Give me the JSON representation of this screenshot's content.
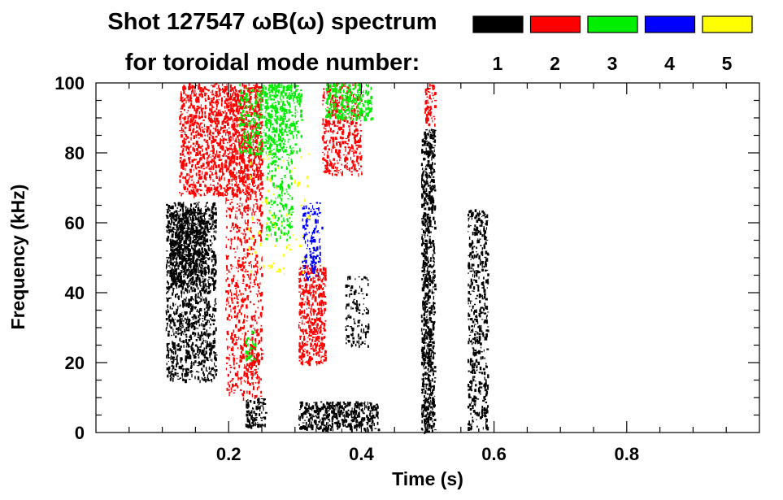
{
  "chart_data": {
    "type": "heatmap",
    "title_line1": "Shot 127547 ωB(ω) spectrum",
    "title_line2": "for toroidal mode number:",
    "xlabel": "Time (s)",
    "ylabel": "Frequency (kHz)",
    "xlim": [
      0.0,
      1.0
    ],
    "ylim": [
      0,
      100
    ],
    "x_ticks": [
      {
        "value": 0.2,
        "label": "0.2"
      },
      {
        "value": 0.4,
        "label": "0.4"
      },
      {
        "value": 0.6,
        "label": "0.6"
      },
      {
        "value": 0.8,
        "label": "0.8"
      }
    ],
    "y_ticks": [
      {
        "value": 0,
        "label": "0"
      },
      {
        "value": 20,
        "label": "20"
      },
      {
        "value": 40,
        "label": "40"
      },
      {
        "value": 60,
        "label": "60"
      },
      {
        "value": 80,
        "label": "80"
      },
      {
        "value": 100,
        "label": "100"
      }
    ],
    "x_minor_step": 0.05,
    "y_minor_step": 5,
    "legend": [
      {
        "mode": "1",
        "color": "#000000"
      },
      {
        "mode": "2",
        "color": "#ff0000"
      },
      {
        "mode": "3",
        "color": "#00ee00"
      },
      {
        "mode": "4",
        "color": "#0000ff"
      },
      {
        "mode": "5",
        "color": "#ffff00"
      }
    ],
    "regions": [
      {
        "name": "n1-early-burst",
        "mode": 1,
        "t": [
          0.105,
          0.18
        ],
        "f": [
          15,
          66
        ],
        "density": 0.55
      },
      {
        "name": "n1-early-core",
        "mode": 1,
        "t": [
          0.11,
          0.165
        ],
        "f": [
          42,
          64
        ],
        "density": 0.8
      },
      {
        "name": "n1-sawtooth-low",
        "mode": 1,
        "t": [
          0.225,
          0.255
        ],
        "f": [
          2,
          10
        ],
        "density": 0.7
      },
      {
        "name": "n1-low-band",
        "mode": 1,
        "t": [
          0.305,
          0.425
        ],
        "f": [
          1,
          9
        ],
        "density": 0.8
      },
      {
        "name": "n1-mid-patch",
        "mode": 1,
        "t": [
          0.375,
          0.41
        ],
        "f": [
          25,
          45
        ],
        "density": 0.3
      },
      {
        "name": "n1-vertical-0.5",
        "mode": 1,
        "t": [
          0.49,
          0.51
        ],
        "f": [
          0,
          87
        ],
        "density": 0.85
      },
      {
        "name": "n1-vertical-0.57",
        "mode": 1,
        "t": [
          0.56,
          0.59
        ],
        "f": [
          1,
          64
        ],
        "density": 0.45
      },
      {
        "name": "n2-chirp-high",
        "mode": 2,
        "t": [
          0.125,
          0.25
        ],
        "f": [
          68,
          100
        ],
        "density": 0.55
      },
      {
        "name": "n2-streaks",
        "mode": 2,
        "t": [
          0.195,
          0.25
        ],
        "f": [
          10,
          98
        ],
        "density": 0.3
      },
      {
        "name": "n2-mid-cluster",
        "mode": 2,
        "t": [
          0.305,
          0.345
        ],
        "f": [
          20,
          48
        ],
        "density": 0.7
      },
      {
        "name": "n2-upper-band",
        "mode": 2,
        "t": [
          0.34,
          0.4
        ],
        "f": [
          74,
          100
        ],
        "density": 0.45
      },
      {
        "name": "n2-lower-bits",
        "mode": 2,
        "t": [
          0.225,
          0.245
        ],
        "f": [
          14,
          24
        ],
        "density": 0.5
      },
      {
        "name": "n2-late-line",
        "mode": 2,
        "t": [
          0.495,
          0.51
        ],
        "f": [
          88,
          100
        ],
        "density": 0.6
      },
      {
        "name": "n3-high-mid",
        "mode": 3,
        "t": [
          0.215,
          0.31
        ],
        "f": [
          80,
          100
        ],
        "density": 0.4
      },
      {
        "name": "n3-high-late",
        "mode": 3,
        "t": [
          0.345,
          0.415
        ],
        "f": [
          90,
          100
        ],
        "density": 0.6
      },
      {
        "name": "n3-columns",
        "mode": 3,
        "t": [
          0.255,
          0.295
        ],
        "f": [
          55,
          100
        ],
        "density": 0.3
      },
      {
        "name": "n3-low",
        "mode": 3,
        "t": [
          0.225,
          0.24
        ],
        "f": [
          20,
          30
        ],
        "density": 0.4
      },
      {
        "name": "n4-chirp",
        "mode": 4,
        "t": [
          0.31,
          0.34
        ],
        "f": [
          44,
          66
        ],
        "density": 0.35
      },
      {
        "name": "n5-specks",
        "mode": 5,
        "t": [
          0.23,
          0.32
        ],
        "f": [
          45,
          80
        ],
        "density": 0.04
      }
    ]
  }
}
